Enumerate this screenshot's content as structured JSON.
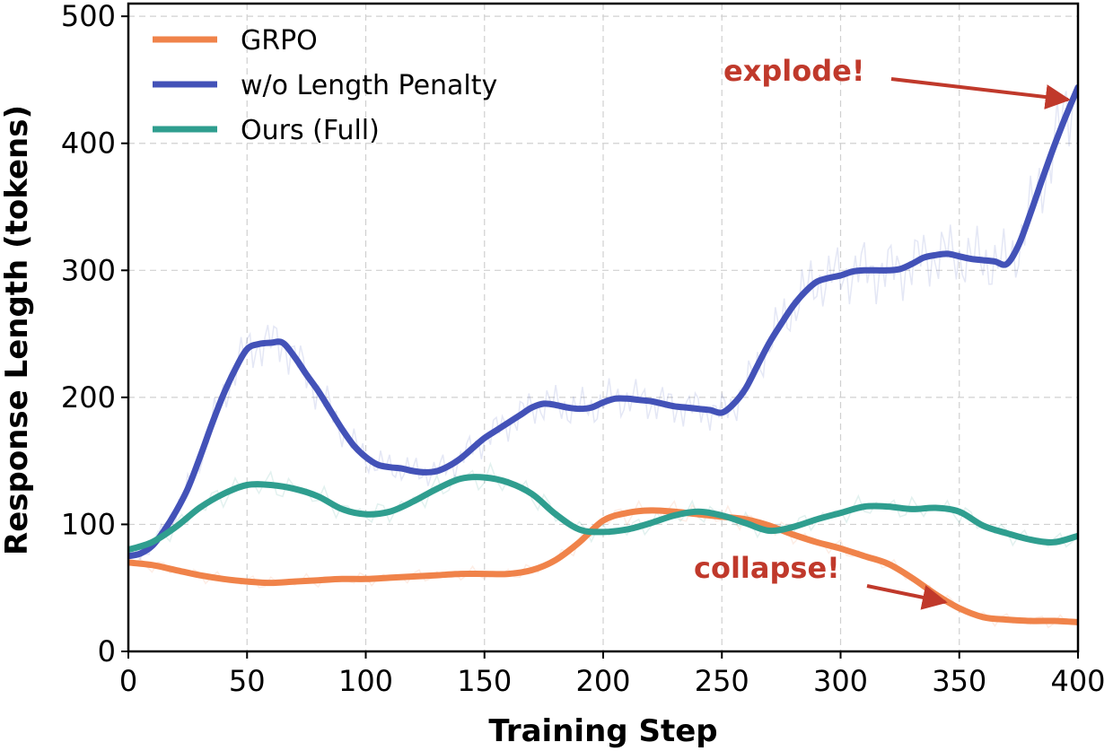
{
  "chart_data": {
    "type": "line",
    "title": "",
    "xlabel": "Training Step",
    "ylabel": "Response Length (tokens)",
    "xlim": [
      0,
      400
    ],
    "ylim": [
      0,
      510
    ],
    "xticks": [
      0,
      50,
      100,
      150,
      200,
      250,
      300,
      350,
      400
    ],
    "yticks": [
      0,
      100,
      200,
      300,
      400,
      500
    ],
    "grid": true,
    "legend_position": "top-left",
    "series": [
      {
        "name": "GRPO",
        "color": "#f0834a",
        "x": [
          0,
          10,
          20,
          30,
          40,
          50,
          60,
          70,
          80,
          90,
          100,
          110,
          120,
          130,
          140,
          150,
          160,
          170,
          180,
          190,
          200,
          210,
          220,
          230,
          240,
          250,
          260,
          270,
          280,
          290,
          300,
          310,
          320,
          330,
          340,
          350,
          360,
          370,
          380,
          390,
          400
        ],
        "values": [
          70,
          68,
          64,
          60,
          57,
          55,
          54,
          55,
          56,
          57,
          57,
          58,
          59,
          60,
          61,
          61,
          61,
          64,
          72,
          86,
          103,
          109,
          111,
          110,
          108,
          106,
          104,
          99,
          92,
          86,
          81,
          75,
          69,
          58,
          45,
          34,
          27,
          25,
          24,
          24,
          23
        ]
      },
      {
        "name": "w/o Length Penalty",
        "color": "#4352b8",
        "x": [
          0,
          5,
          10,
          15,
          20,
          25,
          30,
          35,
          40,
          45,
          50,
          55,
          60,
          65,
          70,
          75,
          80,
          85,
          90,
          95,
          100,
          105,
          110,
          115,
          120,
          125,
          130,
          135,
          140,
          145,
          150,
          155,
          160,
          165,
          170,
          175,
          180,
          185,
          190,
          195,
          200,
          205,
          210,
          215,
          220,
          225,
          230,
          235,
          240,
          245,
          250,
          255,
          260,
          265,
          270,
          275,
          280,
          285,
          290,
          295,
          300,
          305,
          310,
          315,
          320,
          325,
          330,
          335,
          340,
          345,
          350,
          355,
          360,
          365,
          370,
          375,
          380,
          385,
          390,
          395,
          400
        ],
        "values": [
          75,
          77,
          83,
          95,
          110,
          128,
          152,
          178,
          202,
          222,
          238,
          242,
          243,
          243,
          232,
          218,
          205,
          190,
          175,
          162,
          153,
          147,
          145,
          144,
          142,
          141,
          142,
          146,
          152,
          160,
          168,
          174,
          180,
          186,
          192,
          195,
          194,
          192,
          191,
          192,
          196,
          199,
          199,
          198,
          197,
          195,
          193,
          192,
          191,
          190,
          188,
          195,
          207,
          225,
          243,
          258,
          272,
          283,
          291,
          294,
          296,
          299,
          300,
          300,
          300,
          301,
          305,
          310,
          312,
          313,
          311,
          309,
          308,
          307,
          305,
          320,
          345,
          372,
          398,
          422,
          444
        ]
      },
      {
        "name": "Ours (Full)",
        "color": "#2f9e8f",
        "x": [
          0,
          10,
          20,
          30,
          40,
          50,
          60,
          70,
          80,
          90,
          100,
          110,
          120,
          130,
          140,
          150,
          160,
          170,
          180,
          190,
          200,
          210,
          220,
          230,
          240,
          250,
          260,
          270,
          280,
          290,
          300,
          310,
          320,
          330,
          340,
          350,
          360,
          370,
          380,
          390,
          400
        ],
        "values": [
          80,
          86,
          98,
          113,
          124,
          131,
          131,
          128,
          122,
          112,
          108,
          110,
          118,
          128,
          136,
          137,
          133,
          124,
          108,
          96,
          94,
          96,
          101,
          107,
          110,
          107,
          101,
          95,
          98,
          104,
          109,
          114,
          114,
          112,
          113,
          110,
          99,
          93,
          88,
          86,
          91
        ]
      }
    ],
    "annotations": [
      {
        "text": "explode!",
        "color": "#c0392b"
      },
      {
        "text": "collapse!",
        "color": "#c0392b"
      }
    ]
  }
}
